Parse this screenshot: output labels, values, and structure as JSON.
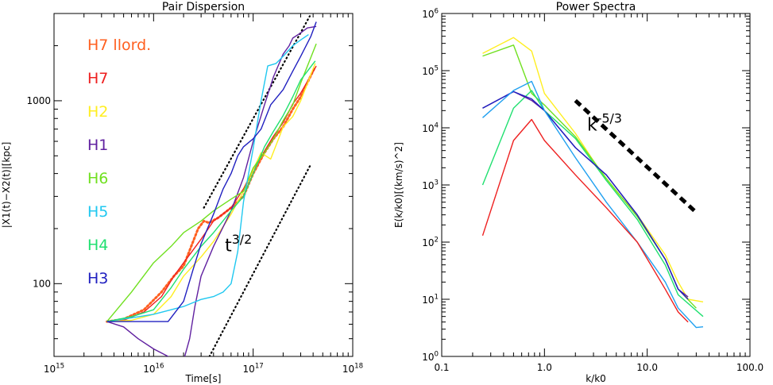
{
  "chart_data": [
    {
      "type": "line",
      "title": "Pair Dispersion",
      "xlabel": "Time[s]",
      "ylabel": "|X1(t)−X2(t)|[kpc]",
      "xscale": "log",
      "yscale": "log",
      "xlim": [
        1000000000000000.0,
        1e+18
      ],
      "ylim": [
        40,
        3000
      ],
      "x_ticks": [
        {
          "v": 1000000000000000.0,
          "b": "10",
          "e": "15"
        },
        {
          "v": 1e+16,
          "b": "10",
          "e": "16"
        },
        {
          "v": 1e+17,
          "b": "10",
          "e": "17"
        },
        {
          "v": 1e+18,
          "b": "10",
          "e": "18"
        }
      ],
      "y_ticks": [
        {
          "v": 100,
          "t": "100"
        },
        {
          "v": 1000,
          "t": "1000"
        }
      ],
      "legend_position": "top-left",
      "annotation": {
        "base": "t",
        "exp": "3/2",
        "x": 5.2e+16,
        "y": 150
      },
      "guides": [
        {
          "name": "t^(3/2) upper",
          "color": "#000000",
          "points": [
            [
              3.2e+16,
              260
            ],
            [
              3.7e+17,
              2900
            ]
          ]
        },
        {
          "name": "t^(3/2) lower",
          "color": "#000000",
          "points": [
            [
              3.2e+16,
              35
            ],
            [
              3.8e+17,
              450
            ]
          ]
        }
      ],
      "series": [
        {
          "name": "H7 llord.",
          "color": "#ff6020",
          "dotted": true,
          "points": [
            [
              3400000000000000.0,
              62
            ],
            [
              5000000000000000.0,
              64
            ],
            [
              8000000000000000.0,
              72
            ],
            [
              1.2e+16,
              90
            ],
            [
              1.6e+16,
              110
            ],
            [
              2e+16,
              125
            ],
            [
              2.8e+16,
              200
            ],
            [
              3.2e+16,
              220
            ],
            [
              3.6e+16,
              215
            ],
            [
              4.5e+16,
              230
            ],
            [
              6e+16,
              260
            ],
            [
              8e+16,
              300
            ],
            [
              1e+17,
              400
            ],
            [
              1.3e+17,
              520
            ],
            [
              1.6e+17,
              620
            ],
            [
              2e+17,
              720
            ],
            [
              2.5e+17,
              900
            ],
            [
              3e+17,
              1050
            ],
            [
              4.1e+17,
              1500
            ]
          ]
        },
        {
          "name": "H7",
          "color": "#ee2020",
          "points": [
            [
              3400000000000000.0,
              62
            ],
            [
              5000000000000000.0,
              63
            ],
            [
              8000000000000000.0,
              70
            ],
            [
              1.2e+16,
              85
            ],
            [
              1.6e+16,
              110
            ],
            [
              2e+16,
              130
            ],
            [
              3e+16,
              175
            ],
            [
              4e+16,
              220
            ],
            [
              6e+16,
              260
            ],
            [
              8e+16,
              330
            ],
            [
              1e+17,
              420
            ],
            [
              1.3e+17,
              530
            ],
            [
              1.6e+17,
              640
            ],
            [
              2e+17,
              760
            ],
            [
              2.5e+17,
              960
            ],
            [
              3e+17,
              1100
            ],
            [
              4.3e+17,
              1550
            ]
          ]
        },
        {
          "name": "H2",
          "color": "#ffee20",
          "points": [
            [
              3400000000000000.0,
              62
            ],
            [
              6000000000000000.0,
              63
            ],
            [
              1e+16,
              68
            ],
            [
              1.5e+16,
              85
            ],
            [
              2e+16,
              110
            ],
            [
              3e+16,
              140
            ],
            [
              4e+16,
              170
            ],
            [
              6e+16,
              240
            ],
            [
              8e+16,
              320
            ],
            [
              1e+17,
              420
            ],
            [
              1.2e+17,
              520
            ],
            [
              1.5e+17,
              480
            ],
            [
              1.8e+17,
              620
            ],
            [
              2e+17,
              720
            ],
            [
              2.5e+17,
              820
            ],
            [
              3e+17,
              1000
            ],
            [
              4.2e+17,
              1600
            ]
          ]
        },
        {
          "name": "H1",
          "color": "#6020a0",
          "points": [
            [
              3400000000000000.0,
              62
            ],
            [
              5000000000000000.0,
              58
            ],
            [
              7000000000000000.0,
              50
            ],
            [
              1e+16,
              44
            ],
            [
              1.4e+16,
              40
            ],
            [
              1.7e+16,
              37
            ],
            [
              2e+16,
              38
            ],
            [
              2.3e+16,
              50
            ],
            [
              2.6e+16,
              75
            ],
            [
              3e+16,
              110
            ],
            [
              4e+16,
              160
            ],
            [
              6e+16,
              250
            ],
            [
              8e+16,
              380
            ],
            [
              1e+17,
              600
            ],
            [
              1.3e+17,
              950
            ],
            [
              1.6e+17,
              1350
            ],
            [
              2e+17,
              1800
            ],
            [
              2.3e+17,
              2000
            ],
            [
              2.5e+17,
              2200
            ],
            [
              3e+17,
              2350
            ],
            [
              3.5e+17,
              2500
            ],
            [
              4.3e+17,
              2550
            ]
          ]
        },
        {
          "name": "H6",
          "color": "#70e020",
          "points": [
            [
              3400000000000000.0,
              62
            ],
            [
              6000000000000000.0,
              90
            ],
            [
              1e+16,
              130
            ],
            [
              1.5e+16,
              160
            ],
            [
              2e+16,
              190
            ],
            [
              3e+16,
              220
            ],
            [
              4e+16,
              250
            ],
            [
              6e+16,
              290
            ],
            [
              8e+16,
              320
            ],
            [
              1e+17,
              430
            ],
            [
              1.3e+17,
              520
            ],
            [
              1.6e+17,
              620
            ],
            [
              2e+17,
              780
            ],
            [
              2.5e+17,
              950
            ],
            [
              3e+17,
              1250
            ],
            [
              4.3e+17,
              2050
            ]
          ]
        },
        {
          "name": "H5",
          "color": "#20c8f0",
          "points": [
            [
              3400000000000000.0,
              62
            ],
            [
              6000000000000000.0,
              65
            ],
            [
              1e+16,
              68
            ],
            [
              1.5e+16,
              72
            ],
            [
              2e+16,
              75
            ],
            [
              3e+16,
              82
            ],
            [
              4e+16,
              85
            ],
            [
              5e+16,
              90
            ],
            [
              6e+16,
              100
            ],
            [
              7e+16,
              150
            ],
            [
              8e+16,
              280
            ],
            [
              1e+17,
              550
            ],
            [
              1.2e+17,
              1000
            ],
            [
              1.4e+17,
              1550
            ],
            [
              1.7e+17,
              1600
            ],
            [
              2e+17,
              1750
            ],
            [
              2.5e+17,
              2000
            ],
            [
              3e+17,
              2150
            ],
            [
              3.6e+17,
              2300
            ]
          ]
        },
        {
          "name": "H4",
          "color": "#20e070",
          "points": [
            [
              3400000000000000.0,
              62
            ],
            [
              6000000000000000.0,
              66
            ],
            [
              1e+16,
              72
            ],
            [
              1.5e+16,
              95
            ],
            [
              2e+16,
              120
            ],
            [
              3e+16,
              160
            ],
            [
              4e+16,
              190
            ],
            [
              6e+16,
              250
            ],
            [
              8e+16,
              300
            ],
            [
              1e+17,
              400
            ],
            [
              1.3e+17,
              560
            ],
            [
              1.6e+17,
              680
            ],
            [
              2e+17,
              830
            ],
            [
              2.5e+17,
              1050
            ],
            [
              3e+17,
              1300
            ],
            [
              4.2e+17,
              1650
            ]
          ]
        },
        {
          "name": "H3",
          "color": "#2020c0",
          "points": [
            [
              3400000000000000.0,
              62
            ],
            [
              8000000000000000.0,
              62
            ],
            [
              1.4e+16,
              62
            ],
            [
              2e+16,
              80
            ],
            [
              2.5e+16,
              120
            ],
            [
              3e+16,
              165
            ],
            [
              4e+16,
              240
            ],
            [
              5e+16,
              330
            ],
            [
              6e+16,
              400
            ],
            [
              7e+16,
              500
            ],
            [
              8e+16,
              560
            ],
            [
              1e+17,
              620
            ],
            [
              1.2e+17,
              700
            ],
            [
              1.5e+17,
              950
            ],
            [
              2e+17,
              1150
            ],
            [
              2.5e+17,
              1450
            ],
            [
              3e+17,
              1750
            ],
            [
              3.8e+17,
              2250
            ],
            [
              4.3e+17,
              2700
            ]
          ]
        }
      ]
    },
    {
      "type": "line",
      "title": "Power Spectra",
      "xlabel": "k/k0",
      "ylabel": "E(k/k0)[(km/s)^2]",
      "xscale": "log",
      "yscale": "log",
      "xlim": [
        0.1,
        100
      ],
      "ylim": [
        1,
        1000000
      ],
      "x_ticks": [
        {
          "v": 0.1,
          "t": "0.1"
        },
        {
          "v": 1,
          "t": "1.0"
        },
        {
          "v": 10,
          "t": "10.0"
        },
        {
          "v": 100,
          "t": "100.0"
        }
      ],
      "y_ticks": [
        {
          "v": 1,
          "b": "10",
          "e": "0"
        },
        {
          "v": 10,
          "b": "10",
          "e": "1"
        },
        {
          "v": 100,
          "b": "10",
          "e": "2"
        },
        {
          "v": 1000,
          "b": "10",
          "e": "3"
        },
        {
          "v": 10000,
          "b": "10",
          "e": "4"
        },
        {
          "v": 100000,
          "b": "10",
          "e": "5"
        },
        {
          "v": 1000000,
          "b": "10",
          "e": "6"
        }
      ],
      "annotation": {
        "base": "k",
        "exp": "-5/3",
        "x": 2.6,
        "y": 9000
      },
      "guides": [
        {
          "name": "k^(-5/3) reference",
          "color": "#000000",
          "dashed": true,
          "points": [
            [
              2.0,
              30000
            ],
            [
              30.0,
              330
            ]
          ]
        }
      ],
      "series": [
        {
          "name": "H2",
          "color": "#ffee20",
          "points": [
            [
              0.25,
              200000
            ],
            [
              0.5,
              380000
            ],
            [
              0.75,
              220000
            ],
            [
              1.0,
              40000
            ],
            [
              2,
              8000
            ],
            [
              4,
              1200
            ],
            [
              8,
              300
            ],
            [
              15,
              60
            ],
            [
              20,
              20
            ],
            [
              25,
              10
            ],
            [
              35,
              9
            ]
          ]
        },
        {
          "name": "H6",
          "color": "#70e020",
          "points": [
            [
              0.25,
              180000
            ],
            [
              0.5,
              280000
            ],
            [
              0.75,
              40000
            ],
            [
              1.0,
              25000
            ],
            [
              2,
              7000
            ],
            [
              4,
              1300
            ],
            [
              8,
              280
            ],
            [
              15,
              50
            ],
            [
              20,
              15
            ],
            [
              30,
              7
            ]
          ]
        },
        {
          "name": "H4",
          "color": "#20e070",
          "points": [
            [
              0.25,
              1000
            ],
            [
              0.5,
              22000
            ],
            [
              0.75,
              45000
            ],
            [
              1.0,
              20000
            ],
            [
              2,
              6500
            ],
            [
              4,
              1200
            ],
            [
              8,
              250
            ],
            [
              15,
              40
            ],
            [
              20,
              12
            ],
            [
              35,
              5
            ]
          ]
        },
        {
          "name": "H1",
          "color": "#6020a0",
          "points": [
            [
              0.25,
              22000
            ],
            [
              0.5,
              43000
            ],
            [
              0.75,
              30000
            ],
            [
              1.0,
              20000
            ],
            [
              2,
              4500
            ],
            [
              4,
              1500
            ],
            [
              8,
              300
            ],
            [
              15,
              50
            ],
            [
              20,
              15
            ],
            [
              25,
              11
            ]
          ]
        },
        {
          "name": "H3",
          "color": "#2020c0",
          "points": [
            [
              0.25,
              22000
            ],
            [
              0.5,
              43000
            ],
            [
              0.75,
              32000
            ],
            [
              1.0,
              20000
            ],
            [
              2,
              4500
            ],
            [
              4,
              1500
            ],
            [
              8,
              300
            ],
            [
              15,
              50
            ],
            [
              20,
              15
            ],
            [
              25,
              10
            ]
          ]
        },
        {
          "name": "H5",
          "color": "#20a0f0",
          "points": [
            [
              0.25,
              15000
            ],
            [
              0.5,
              45000
            ],
            [
              0.75,
              65000
            ],
            [
              1.0,
              20000
            ],
            [
              2,
              3000
            ],
            [
              4,
              500
            ],
            [
              8,
              100
            ],
            [
              15,
              20
            ],
            [
              20,
              7
            ],
            [
              30,
              3.2
            ],
            [
              35,
              3.3
            ]
          ]
        },
        {
          "name": "H7",
          "color": "#ee2020",
          "points": [
            [
              0.25,
              130
            ],
            [
              0.5,
              6000
            ],
            [
              0.75,
              14000
            ],
            [
              1.0,
              6000
            ],
            [
              2,
              1500
            ],
            [
              4,
              400
            ],
            [
              8,
              100
            ],
            [
              15,
              15
            ],
            [
              20,
              6
            ],
            [
              25,
              4
            ]
          ]
        }
      ]
    }
  ]
}
